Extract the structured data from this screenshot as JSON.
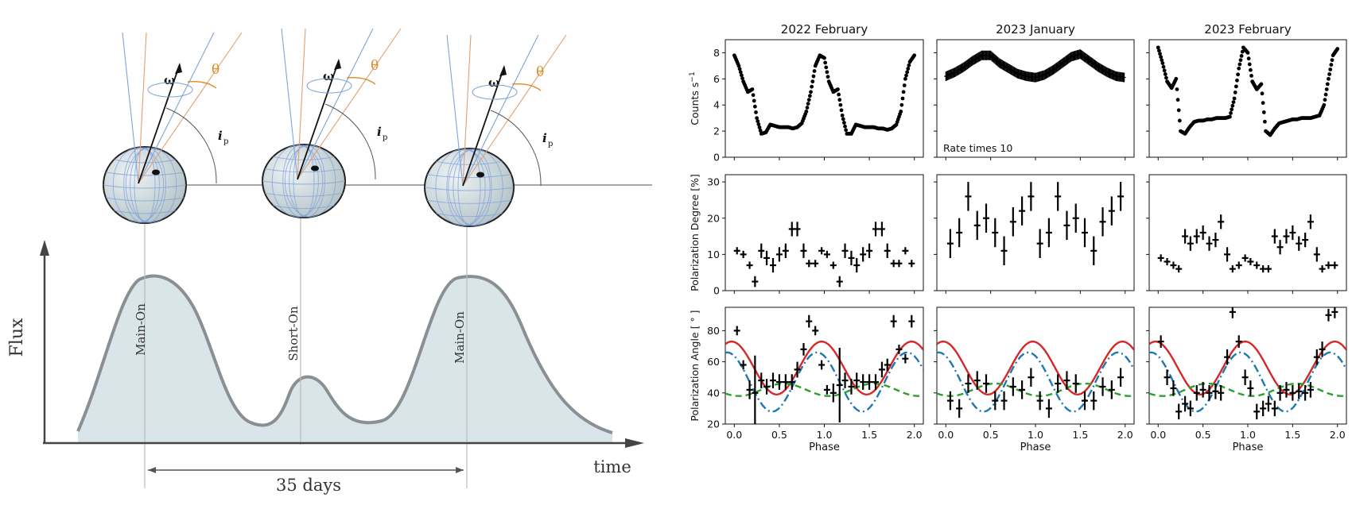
{
  "diagram": {
    "flux_label": "Flux",
    "time_label": "time",
    "period_label": "35 days",
    "peaks": [
      "Main-On",
      "Short-On",
      "Main-On"
    ],
    "omega_symbol": "ω",
    "theta_symbol": "θ",
    "ip_symbol": "i",
    "ip_sub": "p"
  },
  "colors": {
    "data": "#000000",
    "model_red": "#d62728",
    "model_blue": "#1f77b4",
    "model_green": "#2ca02c",
    "fill": "#d9e5e9",
    "curve": "#8a8f94",
    "diagram_blue": "#7fa3d8",
    "diagram_orange": "#e0a070",
    "theta_orange": "#e08a20"
  },
  "chart_data": {
    "type": "scatter",
    "columns": [
      "2022 February",
      "2023 January",
      "2023 February"
    ],
    "xlabel": "Phase",
    "x_ticks": [
      "0.0",
      "0.5",
      "1.0",
      "1.5",
      "2.0"
    ],
    "xlim": [
      -0.1,
      2.1
    ],
    "rows": [
      {
        "ylabel": "Counts s",
        "ylabel_sup": "−1",
        "ylim": [
          0,
          9
        ],
        "yticks": [
          0,
          2,
          4,
          6,
          8
        ]
      },
      {
        "ylabel": "Polarization Degree [%]",
        "ylim": [
          0,
          32
        ],
        "yticks": [
          0,
          10,
          20,
          30
        ]
      },
      {
        "ylabel": "Polarization Angle [ ° ]",
        "ylim": [
          20,
          95
        ],
        "yticks": [
          20,
          40,
          60,
          80
        ]
      }
    ],
    "annotation": {
      "column": 1,
      "row": 0,
      "text": "Rate times 10"
    },
    "light_curves": [
      {
        "phase": [
          0.0,
          0.05,
          0.1,
          0.15,
          0.2,
          0.25,
          0.3,
          0.35,
          0.4,
          0.45,
          0.5,
          0.55,
          0.6,
          0.65,
          0.7,
          0.75,
          0.8,
          0.85,
          0.9,
          0.95,
          1.0,
          1.05,
          1.1,
          1.15,
          1.2,
          1.25,
          1.3,
          1.35,
          1.4,
          1.45,
          1.5,
          1.55,
          1.6,
          1.65,
          1.7,
          1.75,
          1.8,
          1.85,
          1.9,
          1.95,
          2.0
        ],
        "rate": [
          7.8,
          7.0,
          5.8,
          5.0,
          5.2,
          3.0,
          1.8,
          1.9,
          2.5,
          2.4,
          2.3,
          2.3,
          2.3,
          2.2,
          2.3,
          2.6,
          3.5,
          5.0,
          7.0,
          7.8,
          7.6,
          5.8,
          5.0,
          5.2,
          3.2,
          1.8,
          1.8,
          2.5,
          2.4,
          2.3,
          2.3,
          2.3,
          2.2,
          2.2,
          2.1,
          2.2,
          2.5,
          3.5,
          6.0,
          7.3,
          7.8
        ]
      },
      {
        "phase": [
          0.0,
          0.1,
          0.2,
          0.3,
          0.4,
          0.5,
          0.6,
          0.7,
          0.8,
          0.9,
          1.0,
          1.1,
          1.2,
          1.3,
          1.4,
          1.5,
          1.6,
          1.7,
          1.8,
          1.9,
          2.0
        ],
        "rate": [
          6.2,
          6.5,
          6.9,
          7.4,
          7.8,
          7.8,
          7.2,
          6.8,
          6.4,
          6.2,
          6.1,
          6.3,
          6.7,
          7.2,
          7.7,
          7.9,
          7.4,
          6.9,
          6.5,
          6.2,
          6.1
        ]
      },
      {
        "phase": [
          0.0,
          0.05,
          0.1,
          0.15,
          0.2,
          0.25,
          0.3,
          0.35,
          0.4,
          0.45,
          0.5,
          0.55,
          0.6,
          0.65,
          0.7,
          0.75,
          0.8,
          0.85,
          0.9,
          0.95,
          1.0,
          1.05,
          1.1,
          1.15,
          1.2,
          1.25,
          1.3,
          1.35,
          1.4,
          1.45,
          1.5,
          1.55,
          1.6,
          1.65,
          1.7,
          1.75,
          1.8,
          1.85,
          1.9,
          1.95,
          2.0
        ],
        "rate": [
          8.4,
          7.2,
          5.8,
          5.3,
          6.0,
          2.0,
          1.8,
          2.3,
          2.7,
          2.8,
          2.8,
          2.9,
          2.9,
          3.0,
          3.0,
          3.0,
          3.1,
          4.5,
          6.8,
          8.4,
          8.0,
          5.8,
          5.2,
          5.6,
          2.0,
          1.7,
          2.2,
          2.6,
          2.7,
          2.8,
          2.9,
          2.9,
          3.0,
          3.0,
          3.0,
          3.1,
          3.2,
          4.0,
          6.0,
          7.8,
          8.3
        ]
      }
    ],
    "polarization_degree": [
      {
        "phase": [
          0.03,
          0.1,
          0.17,
          0.23,
          0.3,
          0.36,
          0.43,
          0.5,
          0.57,
          0.64,
          0.7,
          0.77,
          0.83,
          0.9,
          0.97,
          1.03,
          1.1,
          1.17,
          1.23,
          1.3,
          1.36,
          1.43,
          1.5,
          1.57,
          1.64,
          1.7,
          1.77,
          1.83,
          1.9,
          1.97
        ],
        "pd": [
          11,
          10,
          7,
          2.5,
          11,
          9,
          7,
          10,
          11,
          17,
          17,
          11,
          7.5,
          7.5,
          11,
          10,
          7,
          2.5,
          11,
          9,
          7,
          10,
          11,
          17,
          17,
          11,
          7.5,
          7.5,
          11,
          7.5
        ],
        "err": [
          1,
          1,
          1,
          1.5,
          2,
          2,
          2,
          2,
          2,
          2,
          2,
          2,
          1,
          1,
          1,
          1,
          1,
          1.5,
          2,
          2,
          2,
          2,
          2,
          2,
          2,
          2,
          1,
          1,
          1,
          1
        ]
      },
      {
        "phase": [
          0.05,
          0.15,
          0.25,
          0.35,
          0.45,
          0.55,
          0.65,
          0.75,
          0.85,
          0.95,
          1.05,
          1.15,
          1.25,
          1.35,
          1.45,
          1.55,
          1.65,
          1.75,
          1.85,
          1.95
        ],
        "pd": [
          13,
          16,
          26,
          18,
          20,
          16,
          11,
          19,
          22,
          26,
          13,
          16,
          26,
          18,
          20,
          16,
          11,
          19,
          22,
          26
        ],
        "err": [
          4,
          4,
          4,
          4,
          4,
          4,
          4,
          4,
          4,
          4,
          4,
          4,
          4,
          4,
          4,
          4,
          4,
          4,
          4,
          4
        ]
      },
      {
        "phase": [
          0.03,
          0.1,
          0.17,
          0.23,
          0.3,
          0.36,
          0.43,
          0.5,
          0.57,
          0.64,
          0.7,
          0.77,
          0.83,
          0.9,
          0.97,
          1.03,
          1.1,
          1.17,
          1.23,
          1.3,
          1.36,
          1.43,
          1.5,
          1.57,
          1.64,
          1.7,
          1.77,
          1.83,
          1.9,
          1.97
        ],
        "pd": [
          9,
          8,
          7,
          6,
          15,
          13,
          15,
          16,
          13,
          14,
          19,
          10,
          6,
          7,
          9,
          8,
          7,
          6,
          6,
          15,
          12,
          15,
          16,
          13,
          14,
          19,
          10,
          6,
          7,
          7
        ],
        "err": [
          1,
          1,
          1,
          1,
          2,
          2,
          2,
          2,
          2,
          2,
          2,
          2,
          1,
          1,
          1,
          1,
          1,
          1,
          1,
          2,
          2,
          2,
          2,
          2,
          2,
          2,
          2,
          1,
          1,
          1
        ]
      }
    ],
    "polarization_angle": [
      {
        "phase": [
          0.03,
          0.1,
          0.17,
          0.23,
          0.3,
          0.36,
          0.43,
          0.5,
          0.57,
          0.64,
          0.7,
          0.77,
          0.83,
          0.9,
          0.97,
          1.03,
          1.1,
          1.17,
          1.23,
          1.3,
          1.36,
          1.43,
          1.5,
          1.57,
          1.64,
          1.7,
          1.77,
          1.83,
          1.9,
          1.97
        ],
        "pa": [
          80,
          58,
          42,
          40,
          48,
          44,
          48,
          47,
          47,
          47,
          55,
          68,
          86,
          80,
          58,
          42,
          40,
          45,
          48,
          44,
          48,
          47,
          47,
          47,
          55,
          58,
          86,
          68,
          62,
          86
        ],
        "err": [
          3,
          3,
          6,
          24,
          5,
          5,
          5,
          5,
          5,
          5,
          5,
          4,
          4,
          3,
          3,
          3,
          6,
          24,
          5,
          5,
          5,
          5,
          5,
          5,
          5,
          4,
          4,
          3,
          3,
          4
        ]
      },
      {
        "phase": [
          0.05,
          0.15,
          0.25,
          0.35,
          0.45,
          0.55,
          0.65,
          0.75,
          0.85,
          0.95,
          1.05,
          1.15,
          1.25,
          1.35,
          1.45,
          1.55,
          1.65,
          1.75,
          1.85,
          1.95
        ],
        "pa": [
          35,
          30,
          46,
          48,
          46,
          35,
          35,
          44,
          42,
          50,
          35,
          30,
          46,
          48,
          46,
          35,
          35,
          44,
          42,
          50
        ],
        "err": [
          6,
          6,
          6,
          6,
          6,
          6,
          6,
          6,
          6,
          6,
          6,
          6,
          6,
          6,
          6,
          6,
          6,
          6,
          6,
          6
        ]
      },
      {
        "phase": [
          0.03,
          0.1,
          0.17,
          0.23,
          0.3,
          0.36,
          0.43,
          0.5,
          0.57,
          0.64,
          0.7,
          0.77,
          0.83,
          0.9,
          0.97,
          1.03,
          1.1,
          1.17,
          1.23,
          1.3,
          1.36,
          1.43,
          1.5,
          1.57,
          1.64,
          1.7,
          1.77,
          1.83,
          1.9,
          1.97
        ],
        "pa": [
          73,
          50,
          43,
          28,
          33,
          30,
          40,
          42,
          40,
          41,
          40,
          63,
          92,
          73,
          50,
          43,
          28,
          30,
          33,
          30,
          40,
          42,
          40,
          41,
          40,
          42,
          63,
          68,
          90,
          92
        ],
        "err": [
          4,
          5,
          5,
          5,
          5,
          5,
          5,
          5,
          5,
          5,
          5,
          5,
          4,
          4,
          5,
          5,
          5,
          5,
          5,
          5,
          5,
          5,
          5,
          5,
          5,
          5,
          5,
          5,
          4,
          4
        ]
      }
    ],
    "models": [
      {
        "name": "red",
        "style": "solid",
        "mean": 56,
        "amp": 17,
        "phase0": 0.97,
        "harmonic": 2
      },
      {
        "name": "blue",
        "style": "dashdot",
        "mean": 47,
        "amp": 19,
        "phase0": 0.92,
        "harmonic": 2
      },
      {
        "name": "green",
        "style": "dashed",
        "mean": 42,
        "amp": 4,
        "phase0": 0.55,
        "harmonic": 2
      }
    ]
  }
}
